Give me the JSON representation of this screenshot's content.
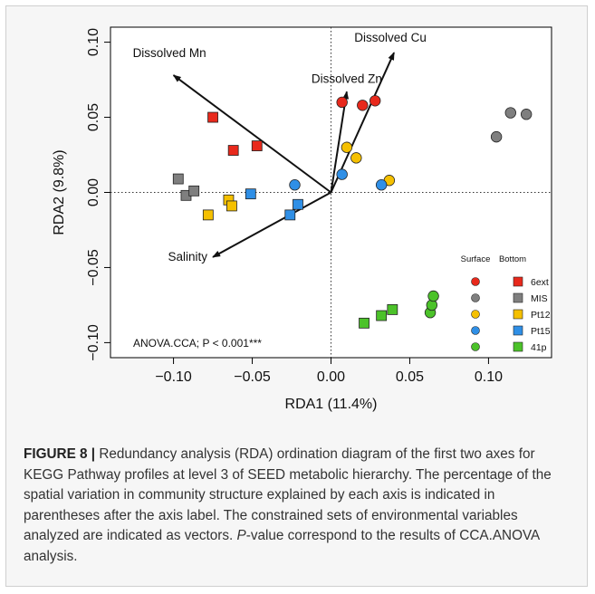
{
  "chart_data": {
    "type": "scatter",
    "xlabel": "RDA1 (11.4%)",
    "ylabel": "RDA2 (9.8%)",
    "xlim": [
      -0.14,
      0.14
    ],
    "ylim": [
      -0.11,
      0.11
    ],
    "xticks": [
      -0.1,
      -0.05,
      0.0,
      0.05,
      0.1
    ],
    "yticks": [
      -0.1,
      -0.05,
      0.0,
      0.05,
      0.1
    ],
    "xtick_labels": [
      "−0.10",
      "−0.05",
      "0.00",
      "0.05",
      "0.10"
    ],
    "ytick_labels": [
      "−0.10",
      "−0.05",
      "0.00",
      "0.05",
      "0.10"
    ],
    "reference_lines": {
      "x": 0,
      "y": 0,
      "style": "dotted"
    },
    "grid": false,
    "annotation": "ANOVA.CCA; P < 0.001***",
    "legend": {
      "placement": "bottom-right",
      "col_headers": [
        "Surface",
        "Bottom"
      ],
      "entries": [
        {
          "label": "6ext",
          "color": "#e8291c"
        },
        {
          "label": "MIS",
          "color": "#7f7f7f"
        },
        {
          "label": "Pt12",
          "color": "#f5c000"
        },
        {
          "label": "Pt15",
          "color": "#2f8fe6"
        },
        {
          "label": "41p",
          "color": "#4cc22a"
        }
      ]
    },
    "vectors": [
      {
        "label": "Dissolved Mn",
        "x": -0.1,
        "y": 0.078
      },
      {
        "label": "Dissolved Zn",
        "x": 0.01,
        "y": 0.067
      },
      {
        "label": "Dissolved Cu",
        "x": 0.04,
        "y": 0.093
      },
      {
        "label": "Salinity",
        "x": -0.075,
        "y": -0.043
      }
    ],
    "series": [
      {
        "group": "6ext",
        "layer": "Surface",
        "marker": "circle",
        "color": "#e8291c",
        "x": [
          0.007,
          0.02,
          0.028
        ],
        "y": [
          0.06,
          0.058,
          0.061
        ]
      },
      {
        "group": "6ext",
        "layer": "Bottom",
        "marker": "square",
        "color": "#e8291c",
        "x": [
          -0.075,
          -0.062,
          -0.047
        ],
        "y": [
          0.05,
          0.028,
          0.031
        ]
      },
      {
        "group": "MIS",
        "layer": "Surface",
        "marker": "circle",
        "color": "#7f7f7f",
        "x": [
          0.105,
          0.114,
          0.124
        ],
        "y": [
          0.037,
          0.053,
          0.052
        ]
      },
      {
        "group": "MIS",
        "layer": "Bottom",
        "marker": "square",
        "color": "#7f7f7f",
        "x": [
          -0.097,
          -0.092,
          -0.087
        ],
        "y": [
          0.009,
          -0.002,
          0.001
        ]
      },
      {
        "group": "Pt12",
        "layer": "Surface",
        "marker": "circle",
        "color": "#f5c000",
        "x": [
          0.01,
          0.016,
          0.037
        ],
        "y": [
          0.03,
          0.023,
          0.008
        ]
      },
      {
        "group": "Pt12",
        "layer": "Bottom",
        "marker": "square",
        "color": "#f5c000",
        "x": [
          -0.078,
          -0.065,
          -0.063
        ],
        "y": [
          -0.015,
          -0.005,
          -0.009
        ]
      },
      {
        "group": "Pt15",
        "layer": "Surface",
        "marker": "circle",
        "color": "#2f8fe6",
        "x": [
          -0.023,
          0.007,
          0.032
        ],
        "y": [
          0.005,
          0.012,
          0.005
        ]
      },
      {
        "group": "Pt15",
        "layer": "Bottom",
        "marker": "square",
        "color": "#2f8fe6",
        "x": [
          -0.051,
          -0.026,
          -0.021
        ],
        "y": [
          -0.001,
          -0.015,
          -0.008
        ]
      },
      {
        "group": "41p",
        "layer": "Surface",
        "marker": "circle",
        "color": "#4cc22a",
        "x": [
          0.063,
          0.064,
          0.065
        ],
        "y": [
          -0.08,
          -0.075,
          -0.069
        ]
      },
      {
        "group": "41p",
        "layer": "Bottom",
        "marker": "square",
        "color": "#4cc22a",
        "x": [
          0.021,
          0.032,
          0.039
        ],
        "y": [
          -0.087,
          -0.082,
          -0.078
        ]
      }
    ]
  },
  "caption": {
    "label": "FIGURE 8 |",
    "text_before_p": " Redundancy analysis (RDA) ordination diagram of the first two axes for KEGG Pathway profiles at level 3 of SEED metabolic hierarchy. The percentage of the spatial variation in community structure explained by each axis is indicated in parentheses after the axis label. The constrained sets of environmental variables analyzed are indicated as vectors. ",
    "p_letter": "P",
    "text_after_p": "-value correspond to the results of CCA.ANOVA analysis."
  }
}
